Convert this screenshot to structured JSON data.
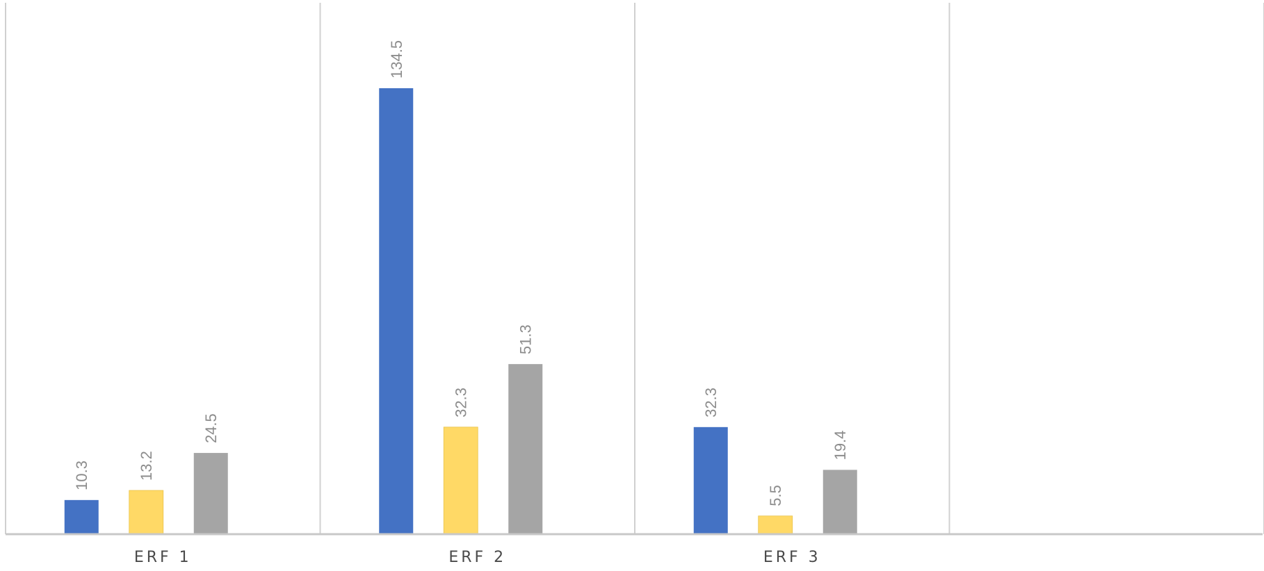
{
  "chart_data": {
    "type": "bar",
    "categories": [
      "ERF 1",
      "ERF 2",
      "ERF 3",
      ""
    ],
    "series": [
      {
        "values": [
          10.3,
          134.5,
          32.3,
          null
        ],
        "color": "#4472c4"
      },
      {
        "values": [
          13.2,
          32.3,
          5.5,
          null
        ],
        "color": "#ffd966"
      },
      {
        "values": [
          24.5,
          51.3,
          19.4,
          null
        ],
        "color": "#a5a5a5"
      }
    ],
    "ylim": [
      0,
      160
    ],
    "grid": false,
    "legend": "none"
  },
  "colors": {
    "divider": "#d0d0d0",
    "axis": "#c8c8c8",
    "value_label": "#8c8c8c",
    "category_label": "#4a4a4a"
  }
}
